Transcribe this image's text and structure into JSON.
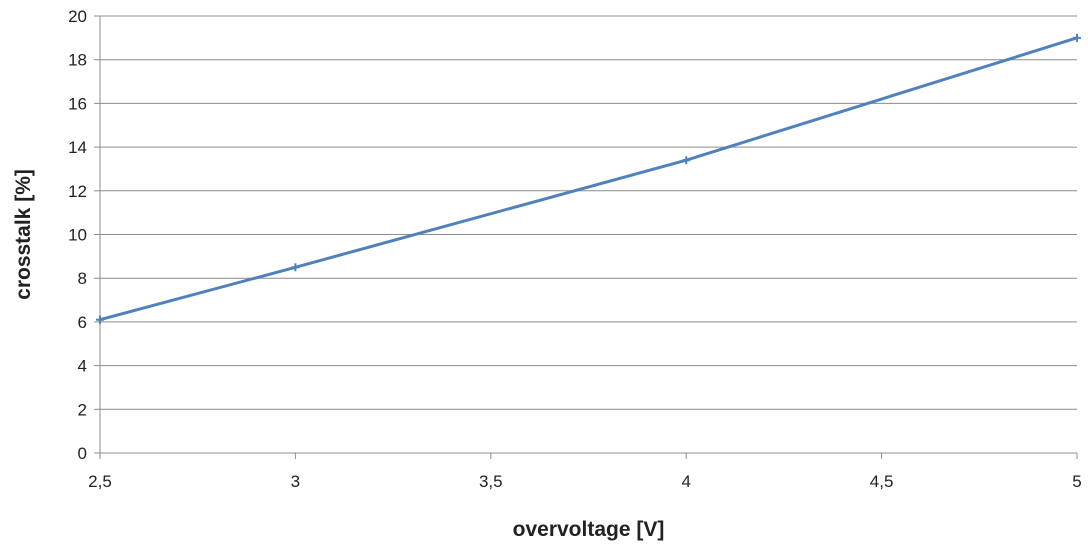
{
  "chart_data": {
    "type": "line",
    "title": "",
    "xlabel": "overvoltage [V]",
    "ylabel": "crosstalk [%]",
    "xlim": [
      2.5,
      5
    ],
    "ylim": [
      0,
      20
    ],
    "x_ticks": [
      2.5,
      3,
      3.5,
      4,
      4.5,
      5
    ],
    "x_tick_labels": [
      "2,5",
      "3",
      "3,5",
      "4",
      "4,5",
      "5"
    ],
    "y_ticks": [
      0,
      2,
      4,
      6,
      8,
      10,
      12,
      14,
      16,
      18,
      20
    ],
    "y_tick_labels": [
      "0",
      "2",
      "4",
      "6",
      "8",
      "10",
      "12",
      "14",
      "16",
      "18",
      "20"
    ],
    "grid": "horizontal",
    "legend": "none",
    "series": [
      {
        "color": "#4f81bd",
        "marker": "plus",
        "x": [
          2.5,
          3,
          4,
          5
        ],
        "y": [
          6.1,
          8.5,
          13.4,
          19.0
        ]
      }
    ]
  }
}
